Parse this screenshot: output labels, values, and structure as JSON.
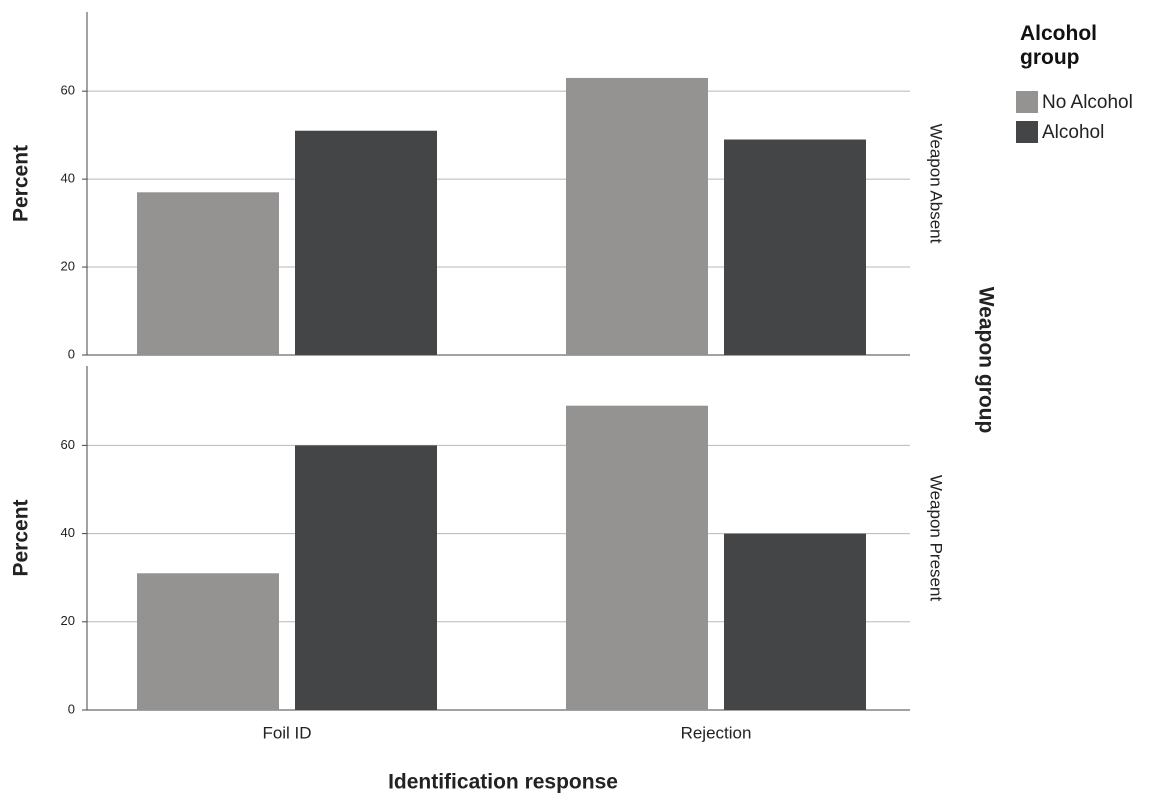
{
  "chart_data": {
    "type": "bar",
    "xlabel": "Identification response",
    "ylabel": "Percent",
    "legend_title": "Alcohol group",
    "facet_title": "Weapon group",
    "categories": [
      "Foil ID",
      "Rejection"
    ],
    "series": [
      {
        "name": "No Alcohol",
        "color": "#959292"
      },
      {
        "name": "Alcohol",
        "color": "#444547"
      }
    ],
    "ylim": [
      0,
      78
    ],
    "yticks": [
      0,
      20,
      40,
      60
    ],
    "grid": true,
    "facets": [
      {
        "label": "Weapon Absent",
        "values": [
          [
            37,
            63
          ],
          [
            51,
            49
          ]
        ]
      },
      {
        "label": "Weapon Present",
        "values": [
          [
            31,
            69
          ],
          [
            60,
            40
          ]
        ]
      }
    ]
  }
}
